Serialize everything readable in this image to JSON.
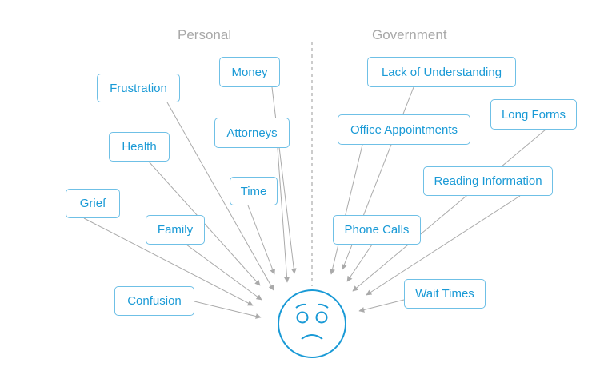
{
  "headers": {
    "left": "Personal",
    "right": "Government"
  },
  "personal": [
    "Frustration",
    "Money",
    "Health",
    "Attorneys",
    "Time",
    "Grief",
    "Family",
    "Confusion"
  ],
  "government": [
    "Lack of Understanding",
    "Office Appointments",
    "Long Forms",
    "Reading Information",
    "Phone Calls",
    "Wait Times"
  ],
  "center_icon": "sad-face-icon",
  "colors": {
    "accent": "#1a9ad6",
    "border": "#6fc0e6",
    "arrow": "#aaaaaa",
    "header": "#a8a8a8"
  }
}
